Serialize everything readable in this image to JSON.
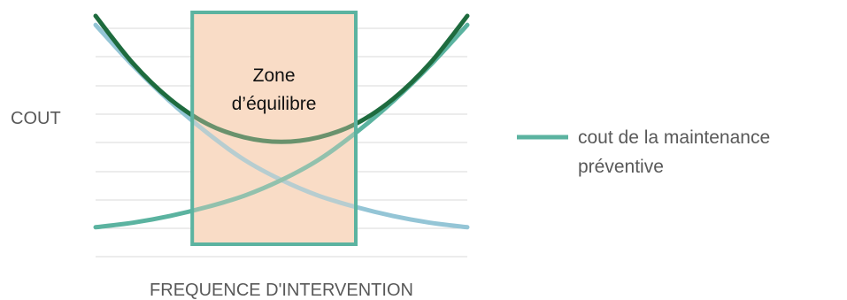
{
  "chart_data": {
    "type": "line",
    "title": "",
    "xlabel": "FREQUENCE D'INTERVENTION",
    "ylabel": "COUT",
    "xlim": [
      0,
      1
    ],
    "ylim": [
      0,
      1
    ],
    "grid": true,
    "legend_position": "right",
    "x": [
      0.0,
      0.1,
      0.2,
      0.3,
      0.4,
      0.5,
      0.6,
      0.7,
      0.8,
      0.9,
      1.0
    ],
    "series": [
      {
        "name": "",
        "color": "#1e6b3e",
        "values": [
          1.0,
          0.79,
          0.63,
          0.52,
          0.46,
          0.44,
          0.46,
          0.52,
          0.63,
          0.79,
          1.0
        ]
      },
      {
        "name": "cout de la maintenance préventive",
        "color": "#5bb3a0",
        "values": [
          0.06,
          0.08,
          0.11,
          0.15,
          0.2,
          0.27,
          0.36,
          0.48,
          0.62,
          0.78,
          0.96
        ]
      },
      {
        "name": "",
        "color": "#94c5d6",
        "values": [
          0.96,
          0.78,
          0.62,
          0.48,
          0.36,
          0.27,
          0.2,
          0.15,
          0.11,
          0.08,
          0.06
        ]
      }
    ],
    "zone": {
      "label_line1": "Zone",
      "label_line2": "d’équilibre",
      "x_range": [
        0.26,
        0.7
      ],
      "fill_color": "#f9dcc7",
      "border_color": "#5bb3a0"
    }
  }
}
